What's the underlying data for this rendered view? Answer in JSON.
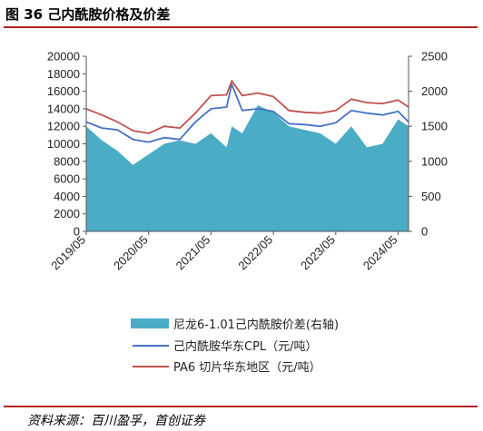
{
  "figure": {
    "title": "图 36 己内酰胺价格及价差",
    "source": "资料来源：百川盈孚，首创证券"
  },
  "colors": {
    "spread": "#4bacc6",
    "cpl": "#4472c4",
    "pa6": "#c0504d",
    "rule": "#b22222"
  },
  "chart_data": {
    "type": "line",
    "x": [
      "2019/05",
      "2019/08",
      "2019/11",
      "2020/02",
      "2020/05",
      "2020/08",
      "2020/11",
      "2021/02",
      "2021/05",
      "2021/08",
      "2021/09",
      "2021/11",
      "2022/02",
      "2022/05",
      "2022/08",
      "2022/11",
      "2023/02",
      "2023/05",
      "2023/08",
      "2023/11",
      "2024/02",
      "2024/05",
      "2024/07"
    ],
    "x_ticks": [
      "2019/05",
      "2020/05",
      "2021/05",
      "2022/05",
      "2023/05",
      "2024/05"
    ],
    "y_left": {
      "min": 0,
      "max": 20000,
      "ticks": [
        "0",
        "2000",
        "4000",
        "6000",
        "8000",
        "10000",
        "12000",
        "14000",
        "16000",
        "18000",
        "20000"
      ]
    },
    "y_right": {
      "min": 0,
      "max": 2500,
      "ticks": [
        "0",
        "500",
        "1000",
        "1500",
        "2000",
        "2500"
      ]
    },
    "series": [
      {
        "name": "尼龙6-1.01己内酰胺价差(右轴)",
        "kind": "area",
        "axis": "right",
        "values": [
          1500,
          1300,
          1150,
          950,
          1100,
          1250,
          1300,
          1250,
          1400,
          1200,
          1500,
          1400,
          1800,
          1700,
          1500,
          1450,
          1400,
          1250,
          1500,
          1200,
          1250,
          1600,
          1500
        ]
      },
      {
        "name": "己内酰胺华东CPL（元/吨）",
        "kind": "line",
        "axis": "left",
        "values": [
          12500,
          11800,
          11600,
          10500,
          10200,
          10700,
          10500,
          12500,
          14000,
          14200,
          16800,
          13800,
          14000,
          13700,
          12300,
          12200,
          12000,
          12400,
          13800,
          13500,
          13300,
          13700,
          12500
        ]
      },
      {
        "name": "PA6 切片华东地区（元/吨）",
        "kind": "line",
        "axis": "left",
        "values": [
          14000,
          13300,
          12500,
          11500,
          11200,
          12000,
          11800,
          13500,
          15500,
          15600,
          17200,
          15500,
          15800,
          15400,
          13800,
          13600,
          13500,
          13800,
          15100,
          14700,
          14600,
          15000,
          14200
        ]
      }
    ],
    "legend_position": "bottom",
    "grid": false
  }
}
